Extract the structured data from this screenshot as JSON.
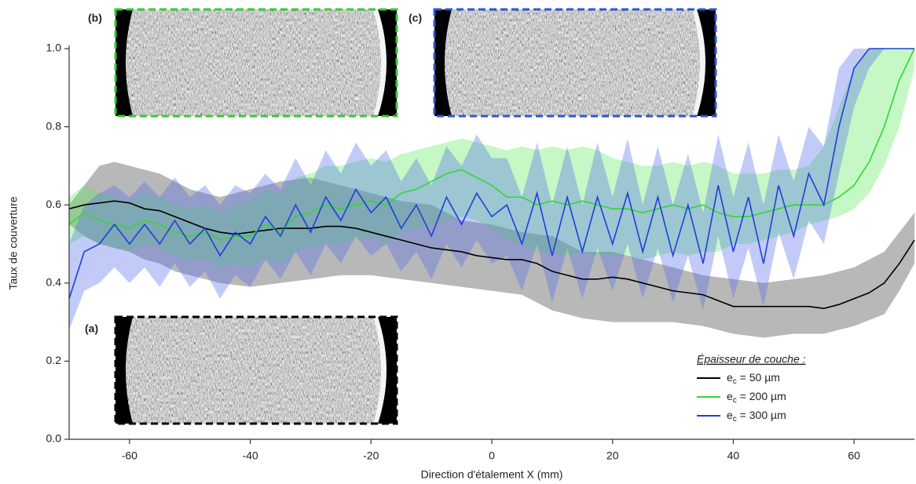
{
  "chart_data": {
    "type": "line",
    "xlabel": "Direction d'étalement X (mm)",
    "ylabel": "Taux de couverture",
    "legend_title": "Épaisseur de couche :",
    "legend": "lower right",
    "xlim": [
      -70,
      70
    ],
    "ylim": [
      0,
      1.0
    ],
    "xticks": [
      -60,
      -40,
      -20,
      0,
      20,
      40,
      60
    ],
    "yticks": [
      {
        "value": 0,
        "label": "0.0"
      },
      0.2,
      0.4,
      0.6,
      0.8,
      {
        "value": 1,
        "label": "1.0"
      }
    ],
    "x": [
      -70,
      -67.5,
      -65,
      -62.5,
      -60,
      -57.5,
      -55,
      -52.5,
      -50,
      -47.5,
      -45,
      -42.5,
      -40,
      -37.5,
      -35,
      -32.5,
      -30,
      -27.5,
      -25,
      -22.5,
      -20,
      -17.5,
      -15,
      -12.5,
      -10,
      -7.5,
      -5,
      -2.5,
      0,
      2.5,
      5,
      7.5,
      10,
      12.5,
      15,
      17.5,
      20,
      22.5,
      25,
      27.5,
      30,
      32.5,
      35,
      37.5,
      40,
      42.5,
      45,
      47.5,
      50,
      52.5,
      55,
      57.5,
      60,
      62.5,
      65,
      67.5,
      70
    ],
    "series": [
      {
        "name": "ec = 50 µm",
        "color": "#000000",
        "band_color": "#b8b8b8",
        "values": [
          0.59,
          0.6,
          0.605,
          0.61,
          0.605,
          0.59,
          0.585,
          0.57,
          0.555,
          0.54,
          0.53,
          0.525,
          0.53,
          0.535,
          0.54,
          0.54,
          0.54,
          0.545,
          0.545,
          0.54,
          0.53,
          0.52,
          0.51,
          0.5,
          0.49,
          0.485,
          0.48,
          0.47,
          0.465,
          0.46,
          0.46,
          0.45,
          0.43,
          0.42,
          0.41,
          0.41,
          0.415,
          0.41,
          0.4,
          0.39,
          0.38,
          0.375,
          0.37,
          0.355,
          0.34,
          0.34,
          0.34,
          0.34,
          0.34,
          0.34,
          0.335,
          0.345,
          0.36,
          0.375,
          0.4,
          0.45,
          0.51
        ],
        "upper": [
          0.6,
          0.65,
          0.7,
          0.71,
          0.7,
          0.69,
          0.68,
          0.66,
          0.64,
          0.63,
          0.62,
          0.63,
          0.64,
          0.65,
          0.66,
          0.665,
          0.67,
          0.66,
          0.65,
          0.64,
          0.63,
          0.62,
          0.61,
          0.605,
          0.6,
          0.58,
          0.56,
          0.555,
          0.55,
          0.54,
          0.53,
          0.525,
          0.52,
          0.5,
          0.48,
          0.48,
          0.48,
          0.47,
          0.46,
          0.45,
          0.44,
          0.43,
          0.42,
          0.415,
          0.41,
          0.405,
          0.4,
          0.405,
          0.41,
          0.415,
          0.42,
          0.43,
          0.44,
          0.46,
          0.48,
          0.53,
          0.58
        ],
        "lower": [
          0.55,
          0.52,
          0.5,
          0.49,
          0.48,
          0.46,
          0.45,
          0.43,
          0.42,
          0.41,
          0.4,
          0.395,
          0.39,
          0.395,
          0.4,
          0.405,
          0.41,
          0.415,
          0.42,
          0.42,
          0.42,
          0.415,
          0.41,
          0.405,
          0.4,
          0.395,
          0.39,
          0.385,
          0.38,
          0.375,
          0.37,
          0.35,
          0.33,
          0.32,
          0.31,
          0.305,
          0.3,
          0.3,
          0.3,
          0.3,
          0.3,
          0.295,
          0.29,
          0.28,
          0.27,
          0.265,
          0.26,
          0.265,
          0.27,
          0.27,
          0.27,
          0.28,
          0.29,
          0.305,
          0.32,
          0.38,
          0.45
        ]
      },
      {
        "name": "ec = 200 µm",
        "color": "#33d633",
        "band_color": "rgba(90,235,90,0.35)",
        "values": [
          0.55,
          0.58,
          0.56,
          0.55,
          0.54,
          0.56,
          0.55,
          0.53,
          0.52,
          0.53,
          0.51,
          0.52,
          0.52,
          0.55,
          0.53,
          0.57,
          0.58,
          0.6,
          0.59,
          0.6,
          0.61,
          0.6,
          0.63,
          0.64,
          0.66,
          0.68,
          0.69,
          0.67,
          0.65,
          0.62,
          0.62,
          0.6,
          0.61,
          0.6,
          0.61,
          0.6,
          0.59,
          0.59,
          0.58,
          0.59,
          0.6,
          0.59,
          0.6,
          0.58,
          0.57,
          0.57,
          0.58,
          0.59,
          0.6,
          0.6,
          0.6,
          0.62,
          0.65,
          0.71,
          0.8,
          0.92,
          1.0
        ],
        "upper": [
          0.62,
          0.65,
          0.63,
          0.62,
          0.61,
          0.63,
          0.62,
          0.6,
          0.59,
          0.6,
          0.58,
          0.6,
          0.61,
          0.64,
          0.63,
          0.67,
          0.68,
          0.7,
          0.7,
          0.71,
          0.72,
          0.71,
          0.73,
          0.74,
          0.75,
          0.76,
          0.77,
          0.76,
          0.75,
          0.74,
          0.75,
          0.74,
          0.75,
          0.74,
          0.75,
          0.74,
          0.72,
          0.71,
          0.7,
          0.7,
          0.71,
          0.7,
          0.71,
          0.7,
          0.68,
          0.68,
          0.68,
          0.69,
          0.69,
          0.7,
          0.75,
          0.85,
          0.95,
          1.0,
          1.0,
          1.0,
          1.0
        ],
        "lower": [
          0.5,
          0.52,
          0.5,
          0.49,
          0.48,
          0.5,
          0.49,
          0.47,
          0.46,
          0.46,
          0.44,
          0.45,
          0.44,
          0.46,
          0.45,
          0.48,
          0.49,
          0.5,
          0.5,
          0.51,
          0.52,
          0.5,
          0.53,
          0.54,
          0.55,
          0.56,
          0.57,
          0.56,
          0.54,
          0.51,
          0.5,
          0.48,
          0.48,
          0.47,
          0.48,
          0.47,
          0.47,
          0.47,
          0.46,
          0.47,
          0.48,
          0.47,
          0.48,
          0.48,
          0.5,
          0.5,
          0.51,
          0.52,
          0.53,
          0.55,
          0.56,
          0.57,
          0.59,
          0.63,
          0.7,
          0.8,
          0.95
        ]
      },
      {
        "name": "ec = 300 µm",
        "color": "#1f3fd8",
        "band_color": "rgba(80,105,235,0.35)",
        "values": [
          0.36,
          0.48,
          0.5,
          0.55,
          0.5,
          0.55,
          0.5,
          0.56,
          0.5,
          0.54,
          0.47,
          0.53,
          0.5,
          0.57,
          0.52,
          0.6,
          0.53,
          0.62,
          0.56,
          0.64,
          0.58,
          0.62,
          0.54,
          0.6,
          0.52,
          0.62,
          0.55,
          0.63,
          0.57,
          0.6,
          0.5,
          0.63,
          0.47,
          0.62,
          0.48,
          0.62,
          0.5,
          0.63,
          0.48,
          0.62,
          0.47,
          0.6,
          0.45,
          0.65,
          0.48,
          0.62,
          0.45,
          0.65,
          0.52,
          0.68,
          0.6,
          0.8,
          0.95,
          1,
          1,
          1,
          1
        ],
        "upper": [
          0.5,
          0.6,
          0.63,
          0.65,
          0.62,
          0.66,
          0.62,
          0.67,
          0.62,
          0.65,
          0.6,
          0.65,
          0.63,
          0.68,
          0.64,
          0.72,
          0.65,
          0.74,
          0.68,
          0.76,
          0.7,
          0.74,
          0.66,
          0.72,
          0.65,
          0.75,
          0.7,
          0.78,
          0.72,
          0.72,
          0.62,
          0.76,
          0.6,
          0.75,
          0.6,
          0.76,
          0.62,
          0.77,
          0.6,
          0.75,
          0.6,
          0.73,
          0.58,
          0.78,
          0.62,
          0.76,
          0.6,
          0.78,
          0.66,
          0.8,
          0.75,
          0.95,
          1,
          1,
          1,
          1,
          1
        ],
        "lower": [
          0.28,
          0.38,
          0.4,
          0.44,
          0.4,
          0.44,
          0.39,
          0.45,
          0.39,
          0.43,
          0.36,
          0.42,
          0.39,
          0.46,
          0.41,
          0.48,
          0.42,
          0.5,
          0.45,
          0.52,
          0.47,
          0.5,
          0.43,
          0.48,
          0.41,
          0.5,
          0.44,
          0.51,
          0.45,
          0.47,
          0.38,
          0.5,
          0.35,
          0.49,
          0.36,
          0.49,
          0.38,
          0.5,
          0.36,
          0.49,
          0.35,
          0.47,
          0.33,
          0.52,
          0.36,
          0.49,
          0.34,
          0.53,
          0.41,
          0.56,
          0.5,
          0.68,
          0.85,
          0.95,
          1,
          1,
          1
        ]
      }
    ],
    "insets": [
      {
        "label": "(b)",
        "color": "#33cc33"
      },
      {
        "label": "(c)",
        "color": "#2f55d4"
      },
      {
        "label": "(a)",
        "color": "#000000"
      }
    ]
  }
}
